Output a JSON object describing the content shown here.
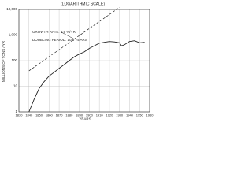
{
  "chart_data": {
    "type": "line",
    "title": "(LOGARITHMIC SCALE)",
    "y_label": "MILLIONS OF TONS / YR",
    "x_label": "YEARS",
    "annotations": [
      "GROWTH RATE: 6.6 %/YR",
      "DOUBLING PERIOD: 10.5 YEARS"
    ],
    "log_y": true,
    "grid": true,
    "xlim": [
      1830,
      1960
    ],
    "xticks": [
      1830,
      1840,
      1850,
      1860,
      1870,
      1880,
      1890,
      1900,
      1910,
      1920,
      1930,
      1940,
      1950,
      1960
    ],
    "ylim": [
      1,
      10000
    ],
    "yticks": [
      1,
      10,
      100,
      {
        "value": 1000,
        "label": "1,000"
      },
      {
        "value": 10000,
        "label": "10,000"
      }
    ],
    "series": [
      {
        "color": "#222222",
        "dashed": false,
        "x": [
          1840,
          1845,
          1850,
          1855,
          1860,
          1865,
          1870,
          1875,
          1880,
          1885,
          1890,
          1895,
          1900,
          1905,
          1910,
          1915,
          1920,
          1925,
          1930,
          1932,
          1935,
          1940,
          1945,
          1950,
          1955
        ],
        "values": [
          1,
          3,
          8,
          15,
          25,
          35,
          50,
          70,
          100,
          140,
          180,
          220,
          300,
          380,
          480,
          520,
          560,
          540,
          500,
          380,
          420,
          560,
          600,
          500,
          520
        ]
      },
      {
        "color": "#222222",
        "dashed": true,
        "x": [
          1840,
          1930
        ],
        "values": [
          40,
          12000
        ]
      }
    ]
  }
}
